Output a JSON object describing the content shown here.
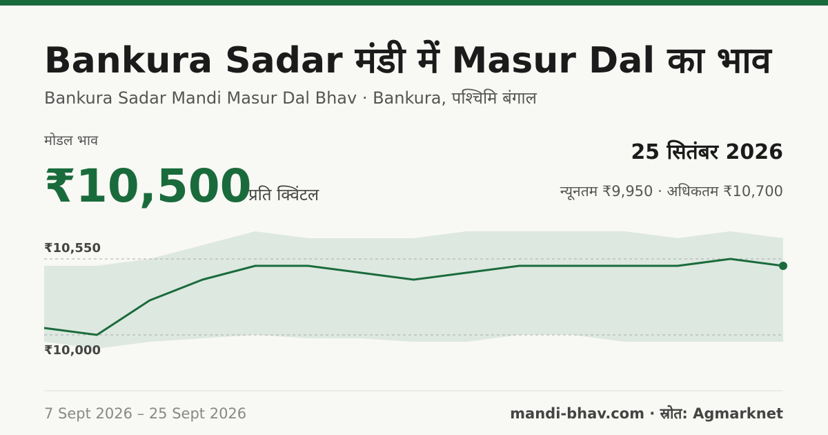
{
  "chart_data": {
    "type": "line",
    "title": "Bankura Sadar मंडी में Masur Dal का भाव",
    "subtitle": "Bankura Sadar Mandi Masur Dal Bhav · Bankura, पश्चिमि बंगाल",
    "price_label": "मोडल भाव",
    "price": "₹10,500",
    "price_unit": "प्रति क्विंटल",
    "date": "25 सितंबर 2026",
    "range_text": "न्यूनतम ₹9,950 · अधिकतम ₹10,700",
    "date_range": "7 Sept 2026 – 25 Sept 2026",
    "source": "mandi-bhav.com · स्रोत: Agmarknet",
    "categories": [
      null,
      null,
      null,
      null,
      null,
      null,
      null,
      null,
      null,
      null,
      null,
      null,
      null,
      null,
      null
    ],
    "series": [
      {
        "color": "#1a6b3c",
        "values": [
          10050,
          10000,
          10250,
          10400,
          10500,
          10500,
          10450,
          10400,
          10450,
          10500,
          10500,
          10500,
          10500,
          10550,
          10500
        ]
      }
    ],
    "band": {
      "color": "#dde8e0",
      "high": [
        10500,
        10500,
        10550,
        10650,
        10750,
        10700,
        10700,
        10700,
        10750,
        10750,
        10750,
        10750,
        10700,
        10750,
        10700
      ],
      "low": [
        9950,
        9900,
        9950,
        9975,
        10000,
        9975,
        9975,
        9950,
        9950,
        10000,
        10000,
        9950,
        9950,
        9950,
        9950
      ]
    },
    "ylim": [
      9725,
      10825
    ],
    "yticks": [
      {
        "value": 10000,
        "label": "₹10,000"
      },
      {
        "value": 10550,
        "label": "₹10,550"
      }
    ],
    "grid": true
  }
}
